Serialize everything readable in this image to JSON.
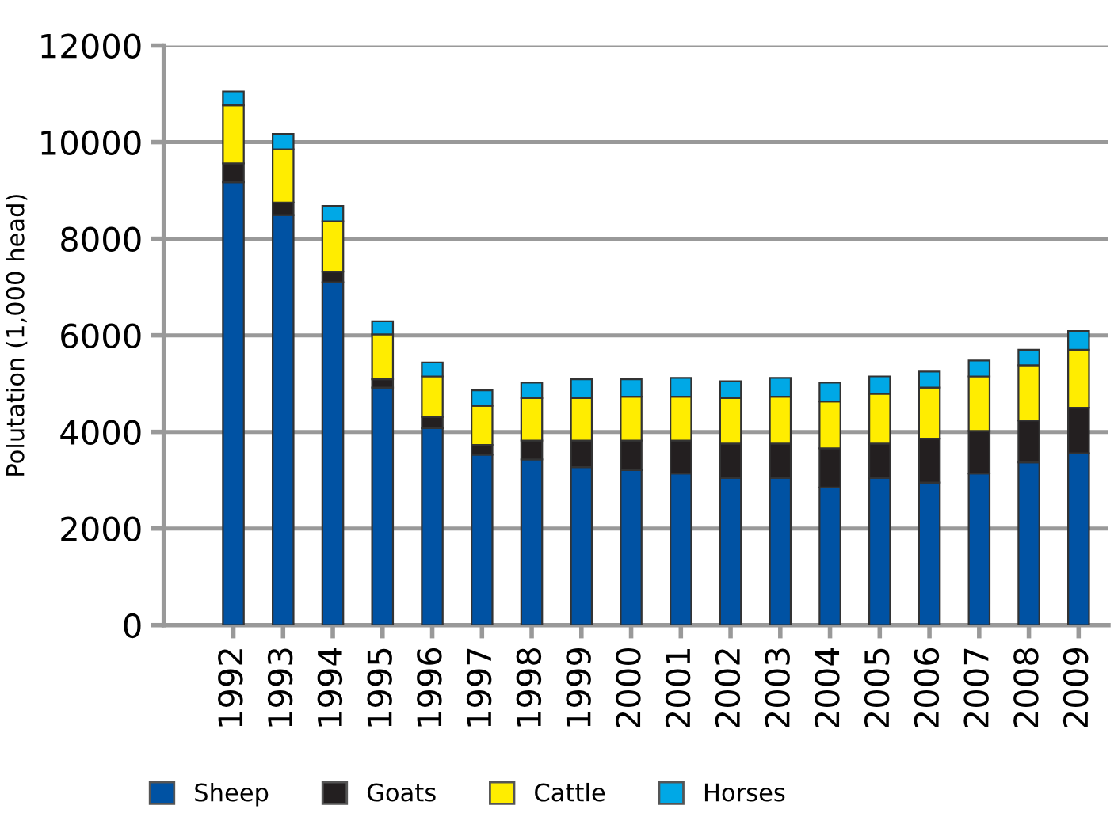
{
  "chart_data": {
    "type": "bar",
    "stacked": true,
    "ylabel": "Polutation (1,000 head)",
    "categories": [
      "1992",
      "1993",
      "1994",
      "1995",
      "1996",
      "1997",
      "1998",
      "1999",
      "2000",
      "2001",
      "2002",
      "2003",
      "2004",
      "2005",
      "2006",
      "2007",
      "2008",
      "2009"
    ],
    "series": [
      {
        "name": "Sheep",
        "color": "#0052a3",
        "values": [
          9170,
          8490,
          7100,
          4920,
          4080,
          3530,
          3430,
          3270,
          3210,
          3140,
          3050,
          3050,
          2850,
          3050,
          2950,
          3140,
          3370,
          3560
        ]
      },
      {
        "name": "Goats",
        "color": "#231f20",
        "values": [
          390,
          260,
          220,
          170,
          230,
          200,
          390,
          550,
          610,
          680,
          710,
          710,
          810,
          710,
          910,
          880,
          870,
          940
        ]
      },
      {
        "name": "Cattle",
        "color": "#ffed00",
        "values": [
          1200,
          1100,
          1040,
          930,
          840,
          810,
          880,
          880,
          910,
          910,
          940,
          970,
          970,
          1030,
          1060,
          1130,
          1140,
          1200
        ]
      },
      {
        "name": "Horses",
        "color": "#00a8e6",
        "values": [
          290,
          320,
          320,
          270,
          290,
          320,
          320,
          390,
          360,
          390,
          350,
          390,
          390,
          360,
          330,
          330,
          320,
          390
        ]
      }
    ],
    "ylim": [
      0,
      12000
    ],
    "yticks": [
      0,
      2000,
      4000,
      6000,
      8000,
      10000,
      12000
    ],
    "grid": "y",
    "legend": "bottom"
  }
}
